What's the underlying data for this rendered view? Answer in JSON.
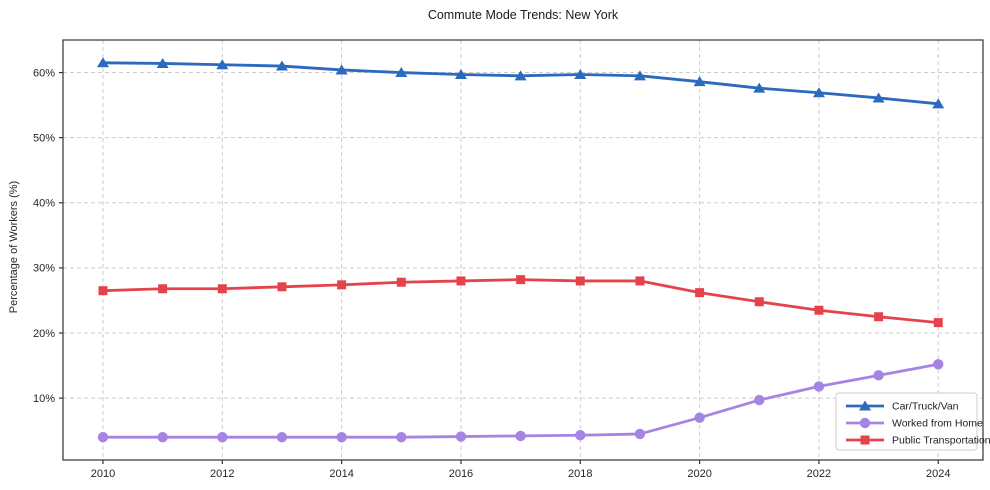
{
  "page": {
    "title": "Commute Mode Trends: New York"
  },
  "chart_data": {
    "type": "line",
    "title": "Commute Mode Trends: New York",
    "xlabel": "",
    "ylabel": "Percentage of Workers (%)",
    "x": [
      2010,
      2011,
      2012,
      2013,
      2014,
      2015,
      2016,
      2017,
      2018,
      2019,
      2020,
      2021,
      2022,
      2023,
      2024
    ],
    "x_ticks": [
      2010,
      2012,
      2014,
      2016,
      2018,
      2020,
      2022,
      2024
    ],
    "x_tick_labels": [
      "2010",
      "2012",
      "2014",
      "2016",
      "2018",
      "2020",
      "2022",
      "2024"
    ],
    "y_ticks": [
      10,
      20,
      30,
      40,
      50,
      60
    ],
    "y_tick_labels": [
      "10%",
      "20%",
      "30%",
      "40%",
      "50%",
      "60%"
    ],
    "xlim": [
      2009.33,
      2024.75
    ],
    "ylim": [
      0.5,
      65
    ],
    "grid": true,
    "grid_color": "#cccccc",
    "axis_color": "#333333",
    "text_color": "#262626",
    "legend_position": "lower right",
    "series": [
      {
        "name": "Car/Truck/Van",
        "color": "#2b6abd",
        "marker": "triangle",
        "values": [
          61.5,
          61.4,
          61.2,
          61.0,
          60.4,
          60.0,
          59.7,
          59.5,
          59.7,
          59.5,
          58.6,
          57.6,
          56.9,
          56.1,
          55.2
        ]
      },
      {
        "name": "Worked from Home",
        "color": "#a584e3",
        "marker": "circle",
        "values": [
          4.0,
          4.0,
          4.0,
          4.0,
          4.0,
          4.0,
          4.1,
          4.2,
          4.3,
          4.5,
          7.0,
          9.7,
          11.8,
          13.5,
          15.2
        ]
      },
      {
        "name": "Public Transportation",
        "color": "#e5434b",
        "marker": "square",
        "values": [
          26.5,
          26.8,
          26.8,
          27.1,
          27.4,
          27.8,
          28.0,
          28.2,
          28.0,
          28.0,
          26.2,
          24.8,
          23.5,
          22.5,
          21.6
        ]
      }
    ]
  }
}
